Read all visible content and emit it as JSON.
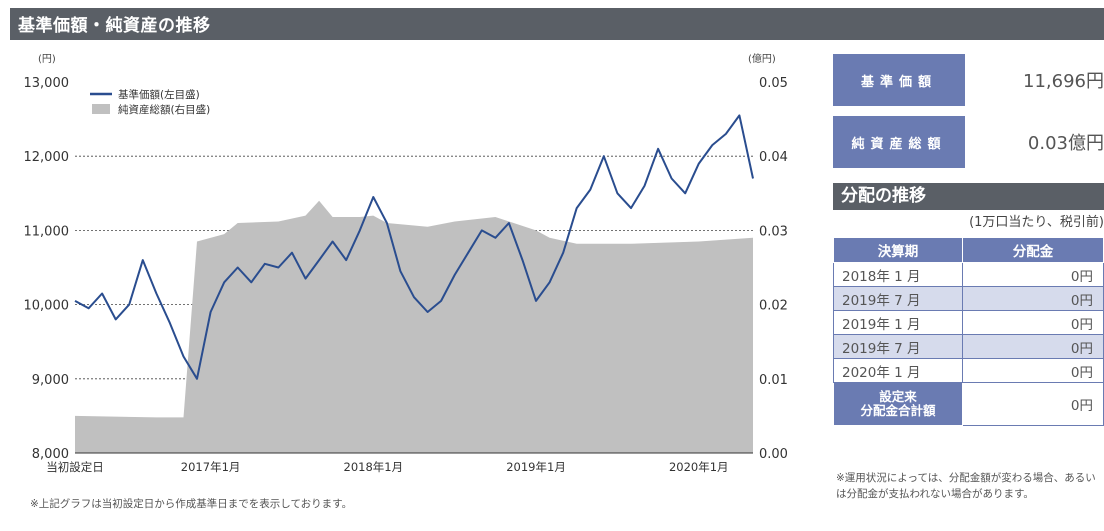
{
  "header": {
    "title": "基準価額・純資産の推移"
  },
  "chart_data": {
    "type": "line+area",
    "left_unit": "(円)",
    "right_unit": "(億円)",
    "left_ylim": [
      8000,
      13000
    ],
    "right_ylim": [
      0.0,
      0.05
    ],
    "left_ticks": [
      "8,000",
      "9,000",
      "10,000",
      "11,000",
      "12,000",
      "13,000"
    ],
    "right_ticks": [
      "0.00",
      "0.01",
      "0.02",
      "0.03",
      "0.04",
      "0.05"
    ],
    "x_ticks": [
      "当初設定日",
      "2017年1月",
      "2018年1月",
      "2019年1月",
      "2020年1月"
    ],
    "legend": [
      "基準価額(左目盛)",
      "純資産総額(右目盛)"
    ],
    "series": [
      {
        "name": "基準価額(左目盛)",
        "color": "#2a4d8f",
        "points": [
          [
            "2016-03",
            10050
          ],
          [
            "2016-04",
            9950
          ],
          [
            "2016-05",
            10150
          ],
          [
            "2016-06",
            9800
          ],
          [
            "2016-07",
            10000
          ],
          [
            "2016-08",
            10600
          ],
          [
            "2016-09",
            10150
          ],
          [
            "2016-10",
            9750
          ],
          [
            "2016-11",
            9300
          ],
          [
            "2016-12",
            9000
          ],
          [
            "2017-01",
            9900
          ],
          [
            "2017-02",
            10300
          ],
          [
            "2017-03",
            10500
          ],
          [
            "2017-04",
            10300
          ],
          [
            "2017-05",
            10550
          ],
          [
            "2017-06",
            10500
          ],
          [
            "2017-07",
            10700
          ],
          [
            "2017-08",
            10350
          ],
          [
            "2017-09",
            10600
          ],
          [
            "2017-10",
            10850
          ],
          [
            "2017-11",
            10600
          ],
          [
            "2017-12",
            11000
          ],
          [
            "2018-01",
            11450
          ],
          [
            "2018-02",
            11100
          ],
          [
            "2018-03",
            10450
          ],
          [
            "2018-04",
            10100
          ],
          [
            "2018-05",
            9900
          ],
          [
            "2018-06",
            10050
          ],
          [
            "2018-07",
            10400
          ],
          [
            "2018-08",
            10700
          ],
          [
            "2018-09",
            11000
          ],
          [
            "2018-10",
            10900
          ],
          [
            "2018-11",
            11100
          ],
          [
            "2018-12",
            10600
          ],
          [
            "2019-01",
            10050
          ],
          [
            "2019-02",
            10300
          ],
          [
            "2019-03",
            10700
          ],
          [
            "2019-04",
            11300
          ],
          [
            "2019-05",
            11550
          ],
          [
            "2019-06",
            12000
          ],
          [
            "2019-07",
            11500
          ],
          [
            "2019-08",
            11300
          ],
          [
            "2019-09",
            11600
          ],
          [
            "2019-10",
            12100
          ],
          [
            "2019-11",
            11700
          ],
          [
            "2019-12",
            11500
          ],
          [
            "2020-01",
            11900
          ],
          [
            "2020-02",
            12150
          ],
          [
            "2020-03",
            12300
          ],
          [
            "2020-04",
            12550
          ],
          [
            "2020-05",
            11700
          ]
        ]
      },
      {
        "name": "純資産総額(右目盛)",
        "color": "#c0c0c0",
        "points": [
          [
            "2016-03",
            0.005
          ],
          [
            "2016-09",
            0.0048
          ],
          [
            "2016-11",
            0.0048
          ],
          [
            "2016-12",
            0.0285
          ],
          [
            "2017-02",
            0.0295
          ],
          [
            "2017-03",
            0.031
          ],
          [
            "2017-06",
            0.0312
          ],
          [
            "2017-08",
            0.032
          ],
          [
            "2017-09",
            0.034
          ],
          [
            "2017-10",
            0.0318
          ],
          [
            "2017-12",
            0.0318
          ],
          [
            "2018-01",
            0.032
          ],
          [
            "2018-02",
            0.031
          ],
          [
            "2018-05",
            0.0305
          ],
          [
            "2018-07",
            0.0312
          ],
          [
            "2018-10",
            0.0318
          ],
          [
            "2019-01",
            0.03
          ],
          [
            "2019-02",
            0.029
          ],
          [
            "2019-04",
            0.0282
          ],
          [
            "2019-08",
            0.0282
          ],
          [
            "2020-01",
            0.0285
          ],
          [
            "2020-05",
            0.029
          ]
        ]
      }
    ]
  },
  "footnote": "※上記グラフは当初設定日から作成基準日までを表示しております。",
  "summary": {
    "nav_label": "基準価額",
    "nav_value": "11,696円",
    "assets_label": "純資産総額",
    "assets_value": "0.03億円"
  },
  "distribution": {
    "title": "分配の推移",
    "note": "(1万口当たり、税引前)",
    "col_period": "決算期",
    "col_amount": "分配金",
    "rows": [
      {
        "period": "2018年 1 月",
        "amount": "0円"
      },
      {
        "period": "2019年 7 月",
        "amount": "0円"
      },
      {
        "period": "2019年 1 月",
        "amount": "0円"
      },
      {
        "period": "2019年 7 月",
        "amount": "0円"
      },
      {
        "period": "2020年 1 月",
        "amount": "0円"
      }
    ],
    "total_label_1": "設定来",
    "total_label_2": "分配金合計額",
    "total_value": "0円",
    "caution": "※運用状況によっては、分配金額が変わる場合、あるいは分配金が支払われない場合があります。"
  }
}
